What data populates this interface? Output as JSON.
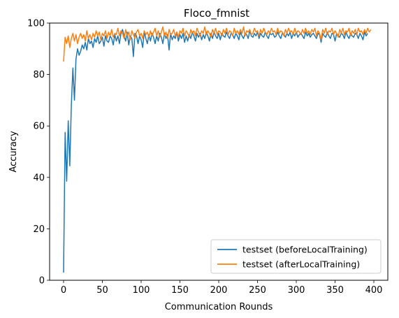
{
  "chart_data": {
    "type": "line",
    "title": "Floco_fmnist",
    "xlabel": "Communication Rounds",
    "ylabel": "Accuracy",
    "xlim": [
      -18,
      418
    ],
    "ylim": [
      0,
      100
    ],
    "xticks": [
      0,
      50,
      100,
      150,
      200,
      250,
      300,
      350,
      400
    ],
    "yticks": [
      0,
      20,
      40,
      60,
      80,
      100
    ],
    "grid": false,
    "legend_position": "lower right",
    "x_start": 0,
    "x_step": 2,
    "series": [
      {
        "name": "testset (beforeLocalTraining)",
        "color": "#1f77b4",
        "values": [
          3,
          57.5,
          38.5,
          62,
          44.5,
          68,
          82.5,
          70,
          86,
          90,
          87.5,
          89,
          91.5,
          90,
          92.5,
          89.5,
          94,
          92,
          93,
          90.5,
          94,
          92.5,
          95,
          92,
          93,
          94.5,
          91,
          95,
          93,
          92.5,
          95,
          94,
          91.5,
          95.5,
          93,
          95,
          92,
          96,
          97.5,
          95,
          93,
          96.5,
          91.5,
          95,
          94,
          87,
          96,
          95,
          92,
          95,
          93.5,
          90.5,
          96.5,
          94,
          92,
          95.5,
          93,
          96,
          94.5,
          92,
          95,
          93,
          96,
          94.5,
          92,
          96,
          94,
          95.5,
          89.5,
          96,
          93.5,
          95,
          94,
          96.5,
          93,
          95.5,
          94,
          96,
          92.5,
          95,
          93,
          95.5,
          94,
          96.5,
          95,
          93,
          96,
          94.5,
          96,
          93.5,
          95.5,
          94,
          96.5,
          95,
          93,
          96,
          94,
          96.5,
          95,
          94,
          96,
          93.5,
          96,
          95,
          94.5,
          96.5,
          95,
          94,
          96,
          95.5,
          94,
          96,
          95,
          93.5,
          96.5,
          95,
          94,
          96,
          95.5,
          94,
          97,
          95,
          94.5,
          96,
          95,
          96.5,
          94,
          96,
          95,
          94.5,
          96.5,
          95,
          94,
          96,
          95.5,
          96,
          94.5,
          95,
          96.5,
          95,
          94,
          96,
          95.5,
          94.5,
          96,
          95,
          96.5,
          94,
          96,
          95,
          96.5,
          94.5,
          95.5,
          96,
          95,
          94,
          96.5,
          95,
          96,
          94.5,
          95.5,
          96,
          95,
          94,
          96,
          95.5,
          92.5,
          96,
          95,
          94.5,
          96.5,
          95,
          94,
          96,
          95.5,
          93,
          96,
          95,
          94.5,
          96,
          95.5,
          94,
          96.5,
          95,
          94,
          96,
          95,
          94.5,
          96,
          95.5,
          94,
          96,
          95,
          93.5,
          96.5,
          95,
          96
        ]
      },
      {
        "name": "testset (afterLocalTraining)",
        "color": "#ff7f0e",
        "values": [
          85,
          94.5,
          92,
          95,
          90.5,
          94,
          96,
          93,
          95.5,
          92,
          94.5,
          96,
          94,
          95.5,
          93,
          97,
          94,
          95.5,
          93.5,
          96,
          94.5,
          97,
          95,
          96.5,
          93.5,
          96,
          95,
          97,
          94,
          96.5,
          95,
          97.5,
          94.5,
          96,
          95.5,
          98,
          95,
          97,
          96,
          94,
          97.5,
          95,
          96.5,
          93.5,
          97,
          95.5,
          94,
          96.5,
          97.5,
          95,
          96,
          94,
          97,
          95.5,
          96.5,
          94.5,
          97,
          95,
          96.5,
          98,
          95,
          97,
          94.5,
          96.5,
          98.5,
          95,
          96.5,
          94,
          97.5,
          95.5,
          96,
          97.5,
          95,
          96.5,
          94.5,
          97,
          96,
          98,
          95,
          97,
          96,
          94.5,
          97.5,
          96,
          97,
          95,
          98,
          96.5,
          95,
          97,
          96,
          98.5,
          95.5,
          97,
          96,
          94.5,
          97.5,
          96,
          98,
          95.5,
          97,
          96.5,
          95,
          97.5,
          96,
          98,
          95.5,
          97,
          96.5,
          95,
          98,
          96,
          97,
          95.5,
          97.5,
          96,
          98.5,
          95,
          97,
          96.5,
          97.5,
          95.5,
          96,
          98,
          96.5,
          97,
          95,
          97.5,
          96,
          98,
          96.5,
          95.5,
          97,
          96,
          98,
          96.5,
          97,
          95.5,
          98,
          96,
          97,
          96.5,
          95,
          97.5,
          96,
          98,
          96.5,
          97,
          95.5,
          98,
          96,
          97,
          96.5,
          95.5,
          97.5,
          96,
          98,
          96,
          97,
          95.5,
          97.5,
          96.5,
          98,
          95,
          97,
          96,
          93.5,
          97.5,
          96,
          98,
          95.5,
          97,
          96.5,
          98,
          95.5,
          97,
          96,
          94.5,
          97.5,
          96,
          98,
          95.5,
          97,
          96.5,
          98,
          95,
          97,
          96,
          97.5,
          95.5,
          98,
          96.5,
          97,
          95.5,
          97.5,
          96,
          98,
          96.5,
          97.5
        ]
      }
    ]
  }
}
